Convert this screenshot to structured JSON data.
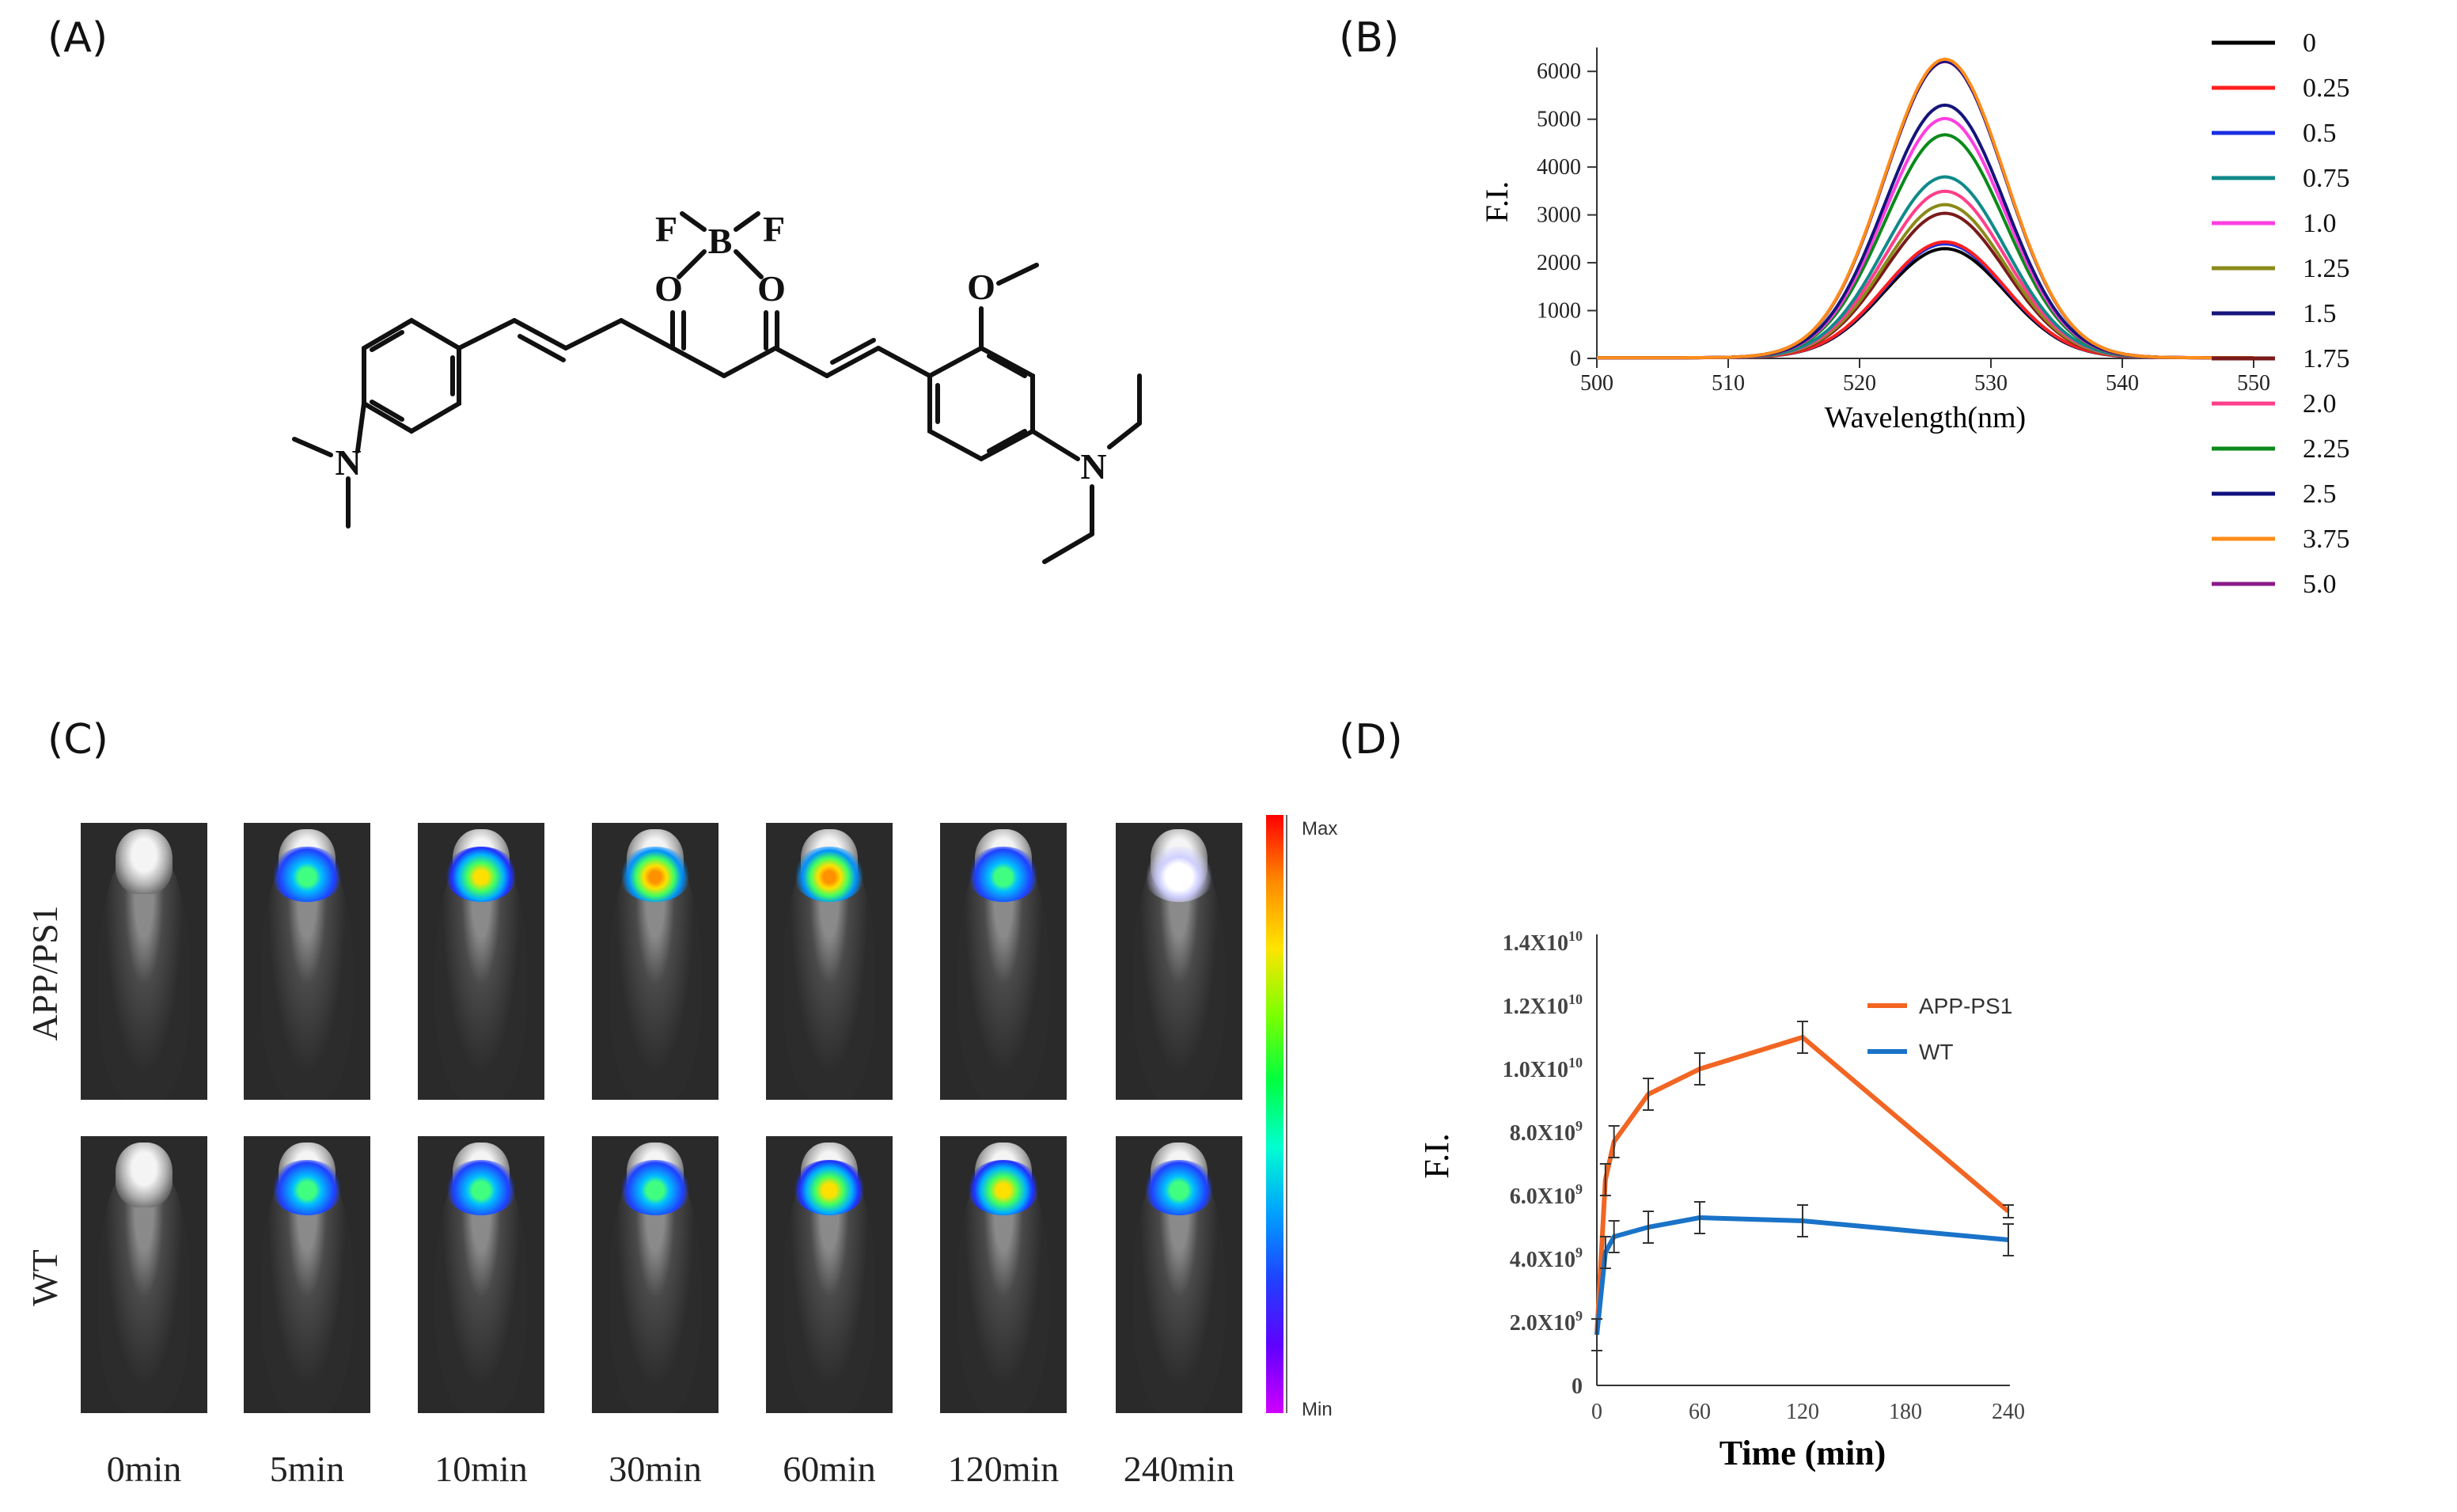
{
  "panels": {
    "a": "(A)",
    "b": "(B)",
    "c": "(C)",
    "d": "(D)"
  },
  "molecule": {
    "atoms": {
      "f_left": "F",
      "f_right": "F",
      "b": "B",
      "o_left": "O",
      "o_right": "O",
      "o_methoxy": "O",
      "n_left": "N",
      "n_right": "N"
    }
  },
  "chart_b": {
    "chart_data": {
      "type": "line",
      "xlabel": "Wavelength(nm)",
      "ylabel": "F.I.",
      "xlim": [
        500,
        550
      ],
      "ylim": [
        0,
        6500
      ],
      "x_ticks": [
        "500",
        "510",
        "520",
        "530",
        "540",
        "550"
      ],
      "y_ticks": [
        "0",
        "1000",
        "2000",
        "3000",
        "4000",
        "5000",
        "6000"
      ],
      "peak_center": 526.5,
      "peak_sigma": 4.6,
      "series": [
        {
          "name": "0",
          "color": "#000000",
          "peak": 2280
        },
        {
          "name": "0.25",
          "color": "#ff2020",
          "peak": 2420
        },
        {
          "name": "0.5",
          "color": "#1a2ee0",
          "peak": 2380
        },
        {
          "name": "0.75",
          "color": "#0f8a8a",
          "peak": 3780
        },
        {
          "name": "1.0",
          "color": "#ff3fe0",
          "peak": 5000
        },
        {
          "name": "1.25",
          "color": "#8a8a1a",
          "peak": 3200
        },
        {
          "name": "1.5",
          "color": "#15157a",
          "peak": 5280
        },
        {
          "name": "1.75",
          "color": "#7a1a1a",
          "peak": 3020
        },
        {
          "name": "2.0",
          "color": "#ff3f8a",
          "peak": 3480
        },
        {
          "name": "2.25",
          "color": "#0a8a1a",
          "peak": 4660
        },
        {
          "name": "2.5",
          "color": "#101080",
          "peak": 6200
        },
        {
          "name": "3.75",
          "color": "#ff8c1a",
          "peak": 6240
        },
        {
          "name": "5.0",
          "color": "#8a1a8a",
          "peak": 6190
        }
      ]
    }
  },
  "panel_c": {
    "rows": [
      "APP/PS1",
      "WT"
    ],
    "times": [
      "0min",
      "5min",
      "10min",
      "30min",
      "60min",
      "120min",
      "240min"
    ],
    "colorbar": {
      "max": "Max",
      "min": "Min"
    }
  },
  "chart_d": {
    "chart_data": {
      "type": "line",
      "xlabel": "Time (min)",
      "ylabel": "F.I.",
      "xlim": [
        0,
        240
      ],
      "ylim": [
        0,
        14000000000.0
      ],
      "x_ticks": [
        "0",
        "60",
        "120",
        "180",
        "240"
      ],
      "y_ticks": [
        {
          "mantissa": "0",
          "exp": ""
        },
        {
          "mantissa": "2.0X10",
          "exp": "9"
        },
        {
          "mantissa": "4.0X10",
          "exp": "9"
        },
        {
          "mantissa": "6.0X10",
          "exp": "9"
        },
        {
          "mantissa": "8.0X10",
          "exp": "9"
        },
        {
          "mantissa": "1.0X10",
          "exp": "10"
        },
        {
          "mantissa": "1.2X10",
          "exp": "10"
        },
        {
          "mantissa": "1.4X10",
          "exp": "10"
        }
      ],
      "series": [
        {
          "name": "APP-PS1",
          "color": "#f26522",
          "x": [
            0,
            5,
            10,
            30,
            60,
            120,
            240
          ],
          "y": [
            1600000000.0,
            6500000000.0,
            7700000000.0,
            9200000000.0,
            10000000000.0,
            11000000000.0,
            5500000000.0
          ],
          "err": [
            500000000.0,
            500000000.0,
            500000000.0,
            500000000.0,
            500000000.0,
            500000000.0,
            200000000.0
          ]
        },
        {
          "name": "WT",
          "color": "#1a73c8",
          "x": [
            0,
            5,
            10,
            30,
            60,
            120,
            240
          ],
          "y": [
            1600000000.0,
            4200000000.0,
            4700000000.0,
            5000000000.0,
            5300000000.0,
            5200000000.0,
            4600000000.0
          ],
          "err": [
            500000000.0,
            500000000.0,
            500000000.0,
            500000000.0,
            500000000.0,
            500000000.0,
            500000000.0
          ]
        }
      ]
    }
  }
}
